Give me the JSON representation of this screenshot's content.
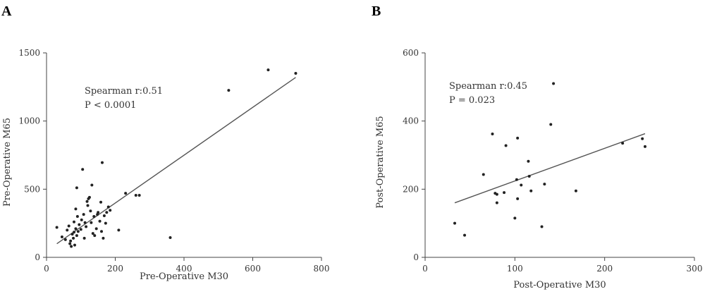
{
  "chart_data": [
    {
      "type": "scatter",
      "panel": "A",
      "xlabel": "Pre-Operative M30",
      "ylabel": "Pre-Operative M65",
      "xlim": [
        0,
        800
      ],
      "ylim": [
        0,
        1500
      ],
      "xticks": [
        0,
        200,
        400,
        600,
        800
      ],
      "yticks": [
        0,
        500,
        1000,
        1500
      ],
      "annotation": [
        "Spearman r:0.51",
        "P < 0.0001"
      ],
      "fit_line": [
        [
          30,
          100
        ],
        [
          725,
          1320
        ]
      ],
      "points": [
        [
          30,
          220
        ],
        [
          45,
          150
        ],
        [
          55,
          130
        ],
        [
          60,
          200
        ],
        [
          65,
          230
        ],
        [
          68,
          100
        ],
        [
          70,
          120
        ],
        [
          72,
          80
        ],
        [
          75,
          170
        ],
        [
          78,
          140
        ],
        [
          80,
          260
        ],
        [
          80,
          185
        ],
        [
          82,
          90
        ],
        [
          85,
          210
        ],
        [
          85,
          355
        ],
        [
          88,
          510
        ],
        [
          88,
          160
        ],
        [
          90,
          300
        ],
        [
          92,
          190
        ],
        [
          95,
          240
        ],
        [
          100,
          205
        ],
        [
          102,
          275
        ],
        [
          105,
          645
        ],
        [
          108,
          315
        ],
        [
          110,
          140
        ],
        [
          112,
          255
        ],
        [
          115,
          225
        ],
        [
          118,
          410
        ],
        [
          120,
          380
        ],
        [
          122,
          430
        ],
        [
          125,
          440
        ],
        [
          128,
          340
        ],
        [
          130,
          255
        ],
        [
          132,
          530
        ],
        [
          135,
          175
        ],
        [
          138,
          300
        ],
        [
          140,
          160
        ],
        [
          145,
          210
        ],
        [
          148,
          315
        ],
        [
          150,
          330
        ],
        [
          155,
          265
        ],
        [
          158,
          405
        ],
        [
          160,
          190
        ],
        [
          162,
          695
        ],
        [
          165,
          140
        ],
        [
          168,
          305
        ],
        [
          172,
          250
        ],
        [
          175,
          330
        ],
        [
          180,
          370
        ],
        [
          185,
          345
        ],
        [
          210,
          200
        ],
        [
          230,
          470
        ],
        [
          260,
          455
        ],
        [
          270,
          455
        ],
        [
          360,
          145
        ],
        [
          530,
          1225
        ],
        [
          645,
          1375
        ],
        [
          725,
          1350
        ]
      ]
    },
    {
      "type": "scatter",
      "panel": "B",
      "xlabel": "Post-Operative M30",
      "ylabel": "Post-Operative M65",
      "xlim": [
        0,
        300
      ],
      "ylim": [
        0,
        600
      ],
      "xticks": [
        0,
        100,
        200,
        300
      ],
      "yticks": [
        0,
        200,
        400,
        600
      ],
      "annotation": [
        "Spearman r:0.45",
        "P = 0.023"
      ],
      "fit_line": [
        [
          33,
          160
        ],
        [
          245,
          363
        ]
      ],
      "points": [
        [
          33,
          100
        ],
        [
          44,
          65
        ],
        [
          65,
          243
        ],
        [
          75,
          362
        ],
        [
          78,
          188
        ],
        [
          80,
          185
        ],
        [
          80,
          160
        ],
        [
          88,
          190
        ],
        [
          90,
          328
        ],
        [
          100,
          115
        ],
        [
          102,
          228
        ],
        [
          103,
          172
        ],
        [
          103,
          350
        ],
        [
          107,
          212
        ],
        [
          115,
          282
        ],
        [
          116,
          238
        ],
        [
          118,
          195
        ],
        [
          130,
          90
        ],
        [
          133,
          215
        ],
        [
          140,
          390
        ],
        [
          143,
          510
        ],
        [
          168,
          195
        ],
        [
          220,
          335
        ],
        [
          242,
          348
        ],
        [
          245,
          325
        ]
      ]
    }
  ]
}
